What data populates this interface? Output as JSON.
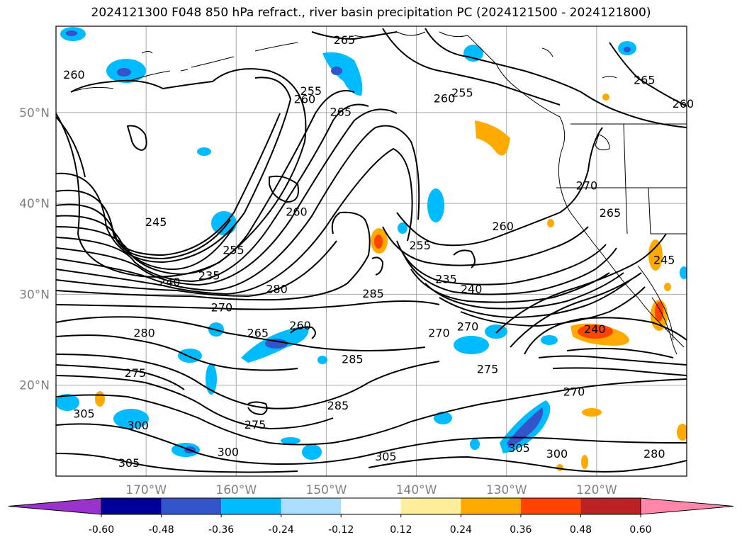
{
  "title": "2024121300 F048 850 hPa refract., river basin precipitation PC (2024121500 - 2024121800)",
  "lat_labels": [
    "50°N",
    "40°N",
    "30°N",
    "20°N"
  ],
  "lat_values": [
    50,
    40,
    30,
    20
  ],
  "lon_labels": [
    "170°W",
    "160°W",
    "150°W",
    "140°W",
    "130°W",
    "120°W"
  ],
  "lon_values": [
    -170,
    -160,
    -150,
    -140,
    -130,
    -120
  ],
  "extent": {
    "lon_min": -180,
    "lon_max": -110,
    "lat_min": 10,
    "lat_max": 59.5
  },
  "colorbar": {
    "ticks": [
      "-0.60",
      "-0.48",
      "-0.36",
      "-0.24",
      "-0.12",
      "0.12",
      "0.24",
      "0.36",
      "0.48",
      "0.60"
    ],
    "colors": [
      "#9933cc",
      "#000099",
      "#3355cc",
      "#00bbff",
      "#aaddff",
      "#ffffff",
      "#ffee99",
      "#ffaa00",
      "#ff4400",
      "#bb2222",
      "#ff88aa"
    ]
  },
  "contour_labels": [
    {
      "text": "260",
      "lon": -178.0,
      "lat": 54.2
    },
    {
      "text": "265",
      "lon": -148.0,
      "lat": 58.0
    },
    {
      "text": "255",
      "lon": -151.7,
      "lat": 52.4
    },
    {
      "text": "260",
      "lon": -152.4,
      "lat": 51.5
    },
    {
      "text": "265",
      "lon": -148.4,
      "lat": 50.1
    },
    {
      "text": "255",
      "lon": -134.9,
      "lat": 52.2
    },
    {
      "text": "260",
      "lon": -136.9,
      "lat": 51.6
    },
    {
      "text": "265",
      "lon": -114.7,
      "lat": 53.6
    },
    {
      "text": "260",
      "lon": -110.4,
      "lat": 51.0
    },
    {
      "text": "260",
      "lon": -153.3,
      "lat": 39.1
    },
    {
      "text": "245",
      "lon": -168.9,
      "lat": 38.0
    },
    {
      "text": "255",
      "lon": -160.3,
      "lat": 34.9
    },
    {
      "text": "240",
      "lon": -167.4,
      "lat": 31.4
    },
    {
      "text": "235",
      "lon": -163.0,
      "lat": 32.1
    },
    {
      "text": "280",
      "lon": -155.5,
      "lat": 30.6
    },
    {
      "text": "270",
      "lon": -161.6,
      "lat": 28.6
    },
    {
      "text": "285",
      "lon": -144.8,
      "lat": 30.1
    },
    {
      "text": "260",
      "lon": -130.4,
      "lat": 37.5
    },
    {
      "text": "255",
      "lon": -139.6,
      "lat": 35.4
    },
    {
      "text": "235",
      "lon": -136.7,
      "lat": 31.7
    },
    {
      "text": "240",
      "lon": -133.9,
      "lat": 30.6
    },
    {
      "text": "265",
      "lon": -118.5,
      "lat": 39.0
    },
    {
      "text": "270",
      "lon": -121.1,
      "lat": 42.0
    },
    {
      "text": "240",
      "lon": -120.2,
      "lat": 26.2
    },
    {
      "text": "245",
      "lon": -112.5,
      "lat": 33.8
    },
    {
      "text": "280",
      "lon": -170.2,
      "lat": 25.8
    },
    {
      "text": "265",
      "lon": -157.6,
      "lat": 25.8
    },
    {
      "text": "260",
      "lon": -152.9,
      "lat": 26.6
    },
    {
      "text": "285",
      "lon": -147.1,
      "lat": 22.9
    },
    {
      "text": "270",
      "lon": -137.5,
      "lat": 25.8
    },
    {
      "text": "270",
      "lon": -134.3,
      "lat": 26.5
    },
    {
      "text": "275",
      "lon": -171.2,
      "lat": 21.4
    },
    {
      "text": "275",
      "lon": -132.1,
      "lat": 21.8
    },
    {
      "text": "285",
      "lon": -148.7,
      "lat": 17.8
    },
    {
      "text": "270",
      "lon": -122.5,
      "lat": 19.3
    },
    {
      "text": "275",
      "lon": -157.9,
      "lat": 15.7
    },
    {
      "text": "305",
      "lon": -176.9,
      "lat": 16.9
    },
    {
      "text": "300",
      "lon": -170.9,
      "lat": 15.6
    },
    {
      "text": "300",
      "lon": -160.9,
      "lat": 12.7
    },
    {
      "text": "305",
      "lon": -171.9,
      "lat": 11.5
    },
    {
      "text": "305",
      "lon": -143.4,
      "lat": 12.2
    },
    {
      "text": "305",
      "lon": -128.6,
      "lat": 13.1
    },
    {
      "text": "300",
      "lon": -124.4,
      "lat": 12.5
    },
    {
      "text": "280",
      "lon": -113.6,
      "lat": 12.5
    }
  ]
}
